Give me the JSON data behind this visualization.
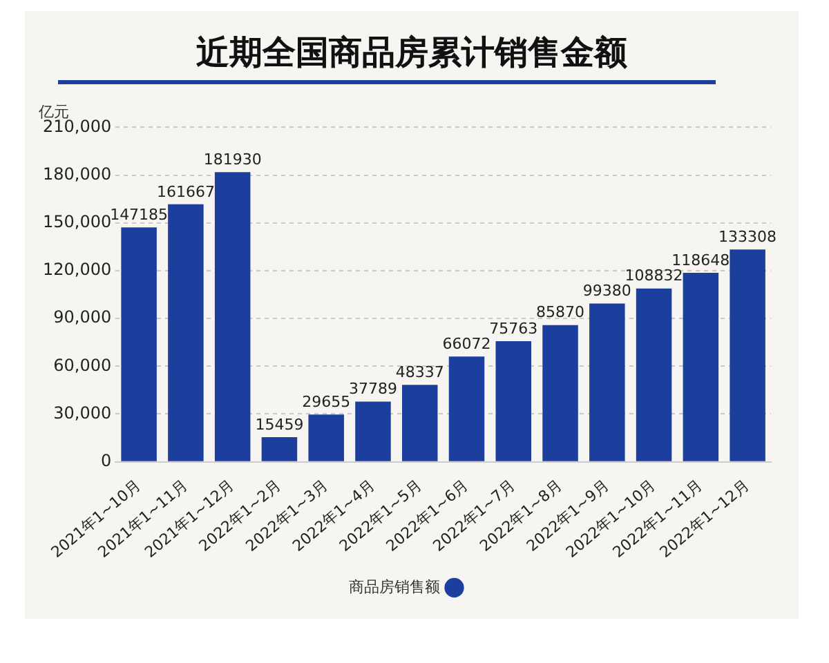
{
  "chart_data": {
    "type": "bar",
    "title": "近期全国商品房累计销售金额",
    "ylabel": "亿元",
    "categories": [
      "2021年1~10月",
      "2021年1~11月",
      "2021年1~12月",
      "2022年1~2月",
      "2022年1~3月",
      "2022年1~4月",
      "2022年1~5月",
      "2022年1~6月",
      "2022年1~7月",
      "2022年1~8月",
      "2022年1~9月",
      "2022年1~10月",
      "2022年1~11月",
      "2022年1~12月"
    ],
    "series": [
      {
        "name": "商品房销售额",
        "color": "#1c3f9e",
        "values": [
          147185,
          161667,
          181930,
          15459,
          29655,
          37789,
          48337,
          66072,
          75763,
          85870,
          99380,
          108832,
          118648,
          133308
        ]
      }
    ],
    "ylim": [
      0,
      210000
    ],
    "yticks": [
      0,
      {
        "value": 30000,
        "label": "30,000"
      },
      {
        "value": 60000,
        "label": "60,000"
      },
      {
        "value": 90000,
        "label": "90,000"
      },
      {
        "value": 120000,
        "label": "120,000"
      },
      {
        "value": 150000,
        "label": "150,000"
      },
      {
        "value": 180000,
        "label": "180,000"
      },
      {
        "value": 210000,
        "label": "210,000"
      }
    ],
    "grid": "y",
    "legend": "bottom",
    "data_labels": true
  }
}
